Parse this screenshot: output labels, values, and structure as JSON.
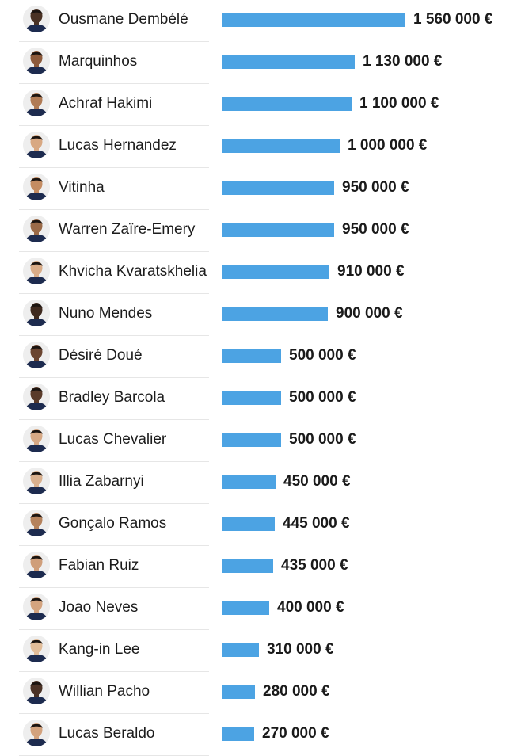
{
  "chart_data": {
    "type": "bar",
    "orientation": "horizontal",
    "categories": [
      "Ousmane Dembélé",
      "Marquinhos",
      "Achraf Hakimi",
      "Lucas Hernandez",
      "Vitinha",
      "Warren Zaïre-Emery",
      "Khvicha Kvaratskhelia",
      "Nuno Mendes",
      "Désiré Doué",
      "Bradley Barcola",
      "Lucas Chevalier",
      "Illia Zabarnyi",
      "Gonçalo Ramos",
      "Fabian Ruiz",
      "Joao Neves",
      "Kang-in Lee",
      "Willian Pacho",
      "Lucas Beraldo"
    ],
    "values": [
      1560000,
      1130000,
      1100000,
      1000000,
      950000,
      950000,
      910000,
      900000,
      500000,
      500000,
      500000,
      450000,
      445000,
      435000,
      400000,
      310000,
      280000,
      270000
    ],
    "value_labels": [
      "1 560 000 €",
      "1 130 000 €",
      "1 100 000 €",
      "1 000 000 €",
      "950 000 €",
      "950 000 €",
      "910 000 €",
      "900 000 €",
      "500 000 €",
      "500 000 €",
      "500 000 €",
      "450 000 €",
      "445 000 €",
      "435 000 €",
      "400 000 €",
      "310 000 €",
      "280 000 €",
      "270 000 €"
    ],
    "skin_tones": [
      "#4a3224",
      "#8d5a3b",
      "#b07b55",
      "#d8a882",
      "#c48c62",
      "#9a6a48",
      "#d9ac88",
      "#3f2a1f",
      "#6b4530",
      "#5a3b2a",
      "#d7a985",
      "#d9b08e",
      "#b5825c",
      "#cf9e7a",
      "#d4a47f",
      "#e2bd99",
      "#4b3226",
      "#d3a27d"
    ],
    "xlim": [
      0,
      1560000
    ],
    "title": "",
    "xlabel": "",
    "ylabel": "",
    "grid": false,
    "bar_color": "#4ca3e3"
  }
}
